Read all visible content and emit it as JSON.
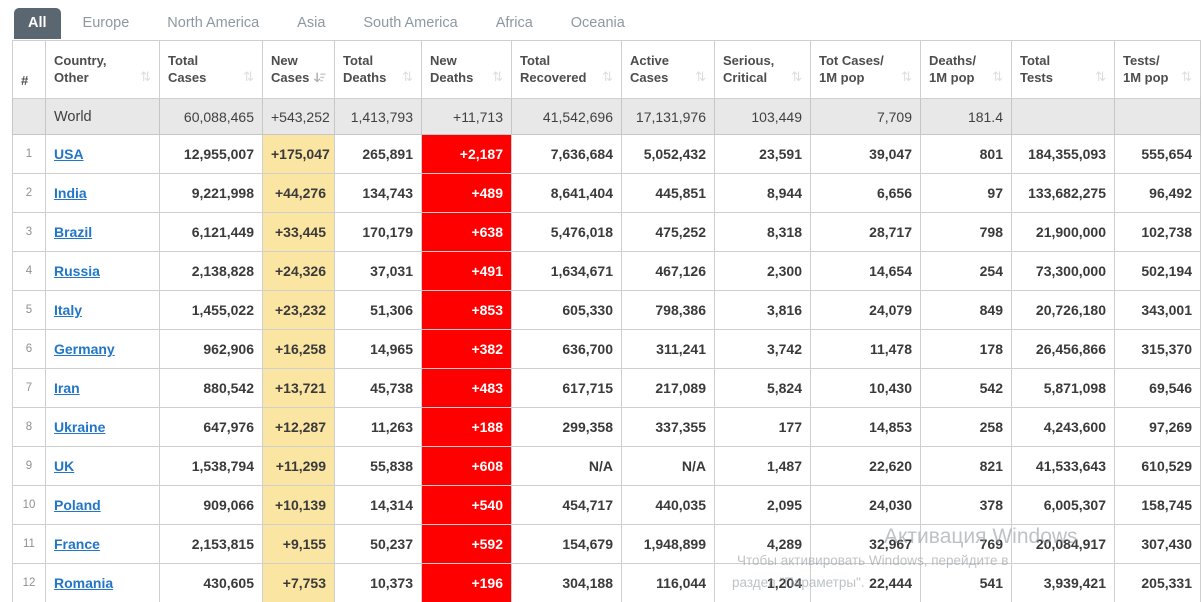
{
  "tabs": [
    {
      "label": "All",
      "active": true
    },
    {
      "label": "Europe",
      "active": false
    },
    {
      "label": "North America",
      "active": false
    },
    {
      "label": "Asia",
      "active": false
    },
    {
      "label": "South America",
      "active": false
    },
    {
      "label": "Africa",
      "active": false
    },
    {
      "label": "Oceania",
      "active": false
    }
  ],
  "table": {
    "columns": [
      {
        "key": "rank",
        "label": [
          "#"
        ],
        "sortable": false
      },
      {
        "key": "country",
        "label": [
          "Country,",
          "Other"
        ],
        "sortable": true
      },
      {
        "key": "total_cases",
        "label": [
          "Total",
          "Cases"
        ],
        "sortable": true
      },
      {
        "key": "new_cases",
        "label": [
          "New",
          "Cases"
        ],
        "sortable": true,
        "sorted": "desc"
      },
      {
        "key": "total_deaths",
        "label": [
          "Total",
          "Deaths"
        ],
        "sortable": true
      },
      {
        "key": "new_deaths",
        "label": [
          "New",
          "Deaths"
        ],
        "sortable": true
      },
      {
        "key": "total_recovered",
        "label": [
          "Total",
          "Recovered"
        ],
        "sortable": true
      },
      {
        "key": "active_cases",
        "label": [
          "Active",
          "Cases"
        ],
        "sortable": true
      },
      {
        "key": "serious_critical",
        "label": [
          "Serious,",
          "Critical"
        ],
        "sortable": true
      },
      {
        "key": "cases_1m",
        "label": [
          "Tot Cases/",
          "1M pop"
        ],
        "sortable": true
      },
      {
        "key": "deaths_1m",
        "label": [
          "Deaths/",
          "1M pop"
        ],
        "sortable": true
      },
      {
        "key": "total_tests",
        "label": [
          "Total",
          "Tests"
        ],
        "sortable": true
      },
      {
        "key": "tests_1m",
        "label": [
          "Tests/",
          "1M pop"
        ],
        "sortable": true
      }
    ],
    "world_row": {
      "rank": "",
      "country": "World",
      "total_cases": "60,088,465",
      "new_cases": "+543,252",
      "total_deaths": "1,413,793",
      "new_deaths": "+11,713",
      "total_recovered": "41,542,696",
      "active_cases": "17,131,976",
      "serious_critical": "103,449",
      "cases_1m": "7,709",
      "deaths_1m": "181.4",
      "total_tests": "",
      "tests_1m": ""
    },
    "rows": [
      {
        "rank": "1",
        "country": "USA",
        "total_cases": "12,955,007",
        "new_cases": "+175,047",
        "total_deaths": "265,891",
        "new_deaths": "+2,187",
        "total_recovered": "7,636,684",
        "active_cases": "5,052,432",
        "serious_critical": "23,591",
        "cases_1m": "39,047",
        "deaths_1m": "801",
        "total_tests": "184,355,093",
        "tests_1m": "555,654"
      },
      {
        "rank": "2",
        "country": "India",
        "total_cases": "9,221,998",
        "new_cases": "+44,276",
        "total_deaths": "134,743",
        "new_deaths": "+489",
        "total_recovered": "8,641,404",
        "active_cases": "445,851",
        "serious_critical": "8,944",
        "cases_1m": "6,656",
        "deaths_1m": "97",
        "total_tests": "133,682,275",
        "tests_1m": "96,492"
      },
      {
        "rank": "3",
        "country": "Brazil",
        "total_cases": "6,121,449",
        "new_cases": "+33,445",
        "total_deaths": "170,179",
        "new_deaths": "+638",
        "total_recovered": "5,476,018",
        "active_cases": "475,252",
        "serious_critical": "8,318",
        "cases_1m": "28,717",
        "deaths_1m": "798",
        "total_tests": "21,900,000",
        "tests_1m": "102,738"
      },
      {
        "rank": "4",
        "country": "Russia",
        "total_cases": "2,138,828",
        "new_cases": "+24,326",
        "total_deaths": "37,031",
        "new_deaths": "+491",
        "total_recovered": "1,634,671",
        "active_cases": "467,126",
        "serious_critical": "2,300",
        "cases_1m": "14,654",
        "deaths_1m": "254",
        "total_tests": "73,300,000",
        "tests_1m": "502,194"
      },
      {
        "rank": "5",
        "country": "Italy",
        "total_cases": "1,455,022",
        "new_cases": "+23,232",
        "total_deaths": "51,306",
        "new_deaths": "+853",
        "total_recovered": "605,330",
        "active_cases": "798,386",
        "serious_critical": "3,816",
        "cases_1m": "24,079",
        "deaths_1m": "849",
        "total_tests": "20,726,180",
        "tests_1m": "343,001"
      },
      {
        "rank": "6",
        "country": "Germany",
        "total_cases": "962,906",
        "new_cases": "+16,258",
        "total_deaths": "14,965",
        "new_deaths": "+382",
        "total_recovered": "636,700",
        "active_cases": "311,241",
        "serious_critical": "3,742",
        "cases_1m": "11,478",
        "deaths_1m": "178",
        "total_tests": "26,456,866",
        "tests_1m": "315,370"
      },
      {
        "rank": "7",
        "country": "Iran",
        "total_cases": "880,542",
        "new_cases": "+13,721",
        "total_deaths": "45,738",
        "new_deaths": "+483",
        "total_recovered": "617,715",
        "active_cases": "217,089",
        "serious_critical": "5,824",
        "cases_1m": "10,430",
        "deaths_1m": "542",
        "total_tests": "5,871,098",
        "tests_1m": "69,546"
      },
      {
        "rank": "8",
        "country": "Ukraine",
        "total_cases": "647,976",
        "new_cases": "+12,287",
        "total_deaths": "11,263",
        "new_deaths": "+188",
        "total_recovered": "299,358",
        "active_cases": "337,355",
        "serious_critical": "177",
        "cases_1m": "14,853",
        "deaths_1m": "258",
        "total_tests": "4,243,600",
        "tests_1m": "97,269"
      },
      {
        "rank": "9",
        "country": "UK",
        "total_cases": "1,538,794",
        "new_cases": "+11,299",
        "total_deaths": "55,838",
        "new_deaths": "+608",
        "total_recovered": "N/A",
        "active_cases": "N/A",
        "serious_critical": "1,487",
        "cases_1m": "22,620",
        "deaths_1m": "821",
        "total_tests": "41,533,643",
        "tests_1m": "610,529"
      },
      {
        "rank": "10",
        "country": "Poland",
        "total_cases": "909,066",
        "new_cases": "+10,139",
        "total_deaths": "14,314",
        "new_deaths": "+540",
        "total_recovered": "454,717",
        "active_cases": "440,035",
        "serious_critical": "2,095",
        "cases_1m": "24,030",
        "deaths_1m": "378",
        "total_tests": "6,005,307",
        "tests_1m": "158,745"
      },
      {
        "rank": "11",
        "country": "France",
        "total_cases": "2,153,815",
        "new_cases": "+9,155",
        "total_deaths": "50,237",
        "new_deaths": "+592",
        "total_recovered": "154,679",
        "active_cases": "1,948,899",
        "serious_critical": "4,289",
        "cases_1m": "32,967",
        "deaths_1m": "769",
        "total_tests": "20,084,917",
        "tests_1m": "307,430"
      },
      {
        "rank": "12",
        "country": "Romania",
        "total_cases": "430,605",
        "new_cases": "+7,753",
        "total_deaths": "10,373",
        "new_deaths": "+196",
        "total_recovered": "304,188",
        "active_cases": "116,044",
        "serious_critical": "1,204",
        "cases_1m": "22,444",
        "deaths_1m": "541",
        "total_tests": "3,939,421",
        "tests_1m": "205,331"
      }
    ]
  },
  "watermark": {
    "line1": "Активация Windows",
    "line2": "Чтобы активировать Windows, перейдите в",
    "line3": "раздел \"Параметры\"."
  },
  "colors": {
    "highlight_yellow": "#fae5a2",
    "alert_red": "#ff0000",
    "link_blue": "#2176c7",
    "active_tab_bg": "#5b6770",
    "world_row_bg": "#e8e8e8"
  }
}
